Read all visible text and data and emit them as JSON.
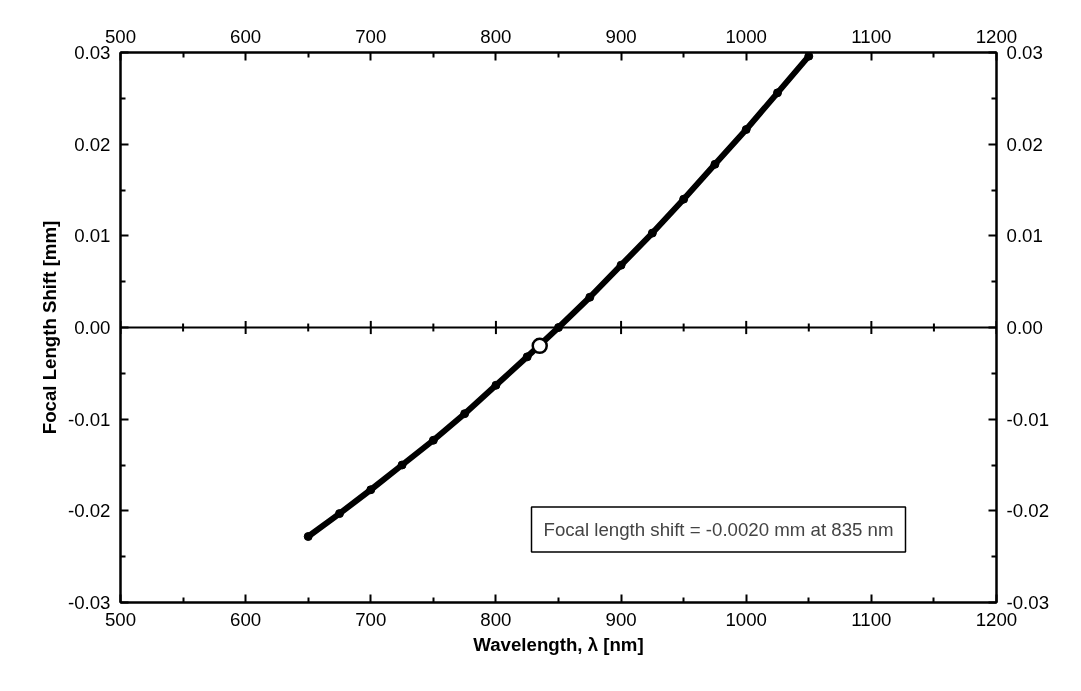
{
  "chart_data": {
    "type": "line",
    "xlabel": "Wavelength, λ [nm]",
    "ylabel": "Focal Length Shift [mm]",
    "series": [
      {
        "color": "#000000",
        "marker": "circle",
        "x": [
          650,
          675,
          700,
          725,
          750,
          775,
          800,
          825,
          850,
          875,
          900,
          925,
          950,
          975,
          1000,
          1025,
          1050
        ],
        "values": [
          -0.0228,
          -0.0203,
          -0.0177,
          -0.015,
          -0.0123,
          -0.0094,
          -0.0063,
          -0.0032,
          0.0,
          0.0033,
          0.0068,
          0.0103,
          0.014,
          0.0178,
          0.0216,
          0.0256,
          0.0296
        ]
      },
      {
        "type": "scatter",
        "color": "#ffffff",
        "marker": "circle",
        "x": [
          835
        ],
        "values": [
          -0.002
        ]
      }
    ],
    "xlim": [
      500,
      1200
    ],
    "xticks": [
      500,
      600,
      700,
      800,
      900,
      1000,
      1100,
      1200
    ],
    "x2lim": [
      500,
      1200
    ],
    "x2ticks": [
      500,
      600,
      700,
      800,
      900,
      1000,
      1100,
      1200
    ],
    "ylim": [
      -0.03,
      0.03
    ],
    "yticks": [
      -0.03,
      -0.02,
      -0.01,
      {
        "value": 0,
        "label": "0.00"
      },
      0.01,
      0.02,
      0.03
    ],
    "y2lim": [
      -0.03,
      0.03
    ],
    "y2ticks": [
      -0.03,
      -0.02,
      -0.01,
      {
        "value": 0,
        "label": "0.00"
      },
      0.01,
      0.02,
      0.03
    ],
    "ref_lines": [
      {
        "axis": "y",
        "value": 0,
        "label": null,
        "color": "#000000"
      }
    ],
    "annotations": [
      "Focal length shift = -0.0020 mm at 835 nm"
    ],
    "grid": false
  }
}
